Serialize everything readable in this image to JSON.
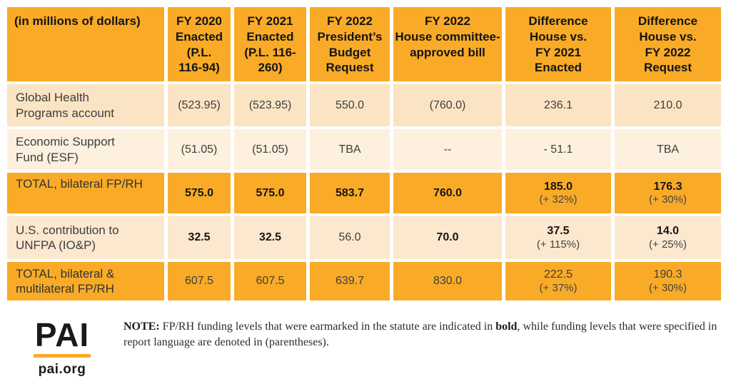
{
  "colors": {
    "orange": "#f9ab27",
    "peach_row1": "#fae4c4",
    "peach_row2": "#fdf0de",
    "peach_row4": "#fbe8cf",
    "text_dark": "#3e3e3e",
    "text_black": "#141414"
  },
  "table": {
    "columns": [
      {
        "lines": [
          "(in millions of dollars)"
        ]
      },
      {
        "lines": [
          "FY 2020",
          "Enacted",
          "(P.L.",
          "116-94)"
        ]
      },
      {
        "lines": [
          "FY 2021",
          "Enacted",
          "(P.L. 116-",
          "260)"
        ]
      },
      {
        "lines": [
          "FY 2022",
          "President’s",
          "Budget",
          "Request"
        ]
      },
      {
        "lines": [
          "FY 2022",
          "House committee-",
          "approved bill"
        ]
      },
      {
        "lines": [
          "Difference",
          "House vs.",
          "FY 2021",
          "Enacted"
        ]
      },
      {
        "lines": [
          "Difference",
          "House vs.",
          "FY 2022",
          "Request"
        ]
      }
    ],
    "rows": [
      {
        "label_lines": [
          "Global Health",
          "Programs account"
        ],
        "cells": [
          {
            "v": "(523.95)"
          },
          {
            "v": "(523.95)"
          },
          {
            "v": "550.0"
          },
          {
            "v": "(760.0)"
          },
          {
            "v": "236.1"
          },
          {
            "v": "210.0"
          }
        ]
      },
      {
        "label_lines": [
          "Economic Support",
          "Fund (ESF)"
        ],
        "cells": [
          {
            "v": "(51.05)"
          },
          {
            "v": "(51.05)"
          },
          {
            "v": "TBA"
          },
          {
            "v": "--"
          },
          {
            "v": "- 51.1"
          },
          {
            "v": "TBA"
          }
        ]
      },
      {
        "label_lines": [
          "TOTAL, bilateral FP/RH"
        ],
        "cells": [
          {
            "v": "575.0"
          },
          {
            "v": "575.0"
          },
          {
            "v": "583.7"
          },
          {
            "v": "760.0"
          },
          {
            "v": "185.0",
            "sub": "(+ 32%)"
          },
          {
            "v": "176.3",
            "sub": "(+ 30%)"
          }
        ]
      },
      {
        "label_lines": [
          "U.S. contribution to",
          "UNFPA (IO&P)"
        ],
        "cells": [
          {
            "v": "32.5"
          },
          {
            "v": "32.5"
          },
          {
            "v": "56.0"
          },
          {
            "v": "70.0"
          },
          {
            "v": "37.5",
            "sub": "(+ 115%)"
          },
          {
            "v": "14.0",
            "sub": "(+ 25%)"
          }
        ]
      },
      {
        "label_lines": [
          "TOTAL, bilateral &",
          "multilateral FP/RH"
        ],
        "cells": [
          {
            "v": "607.5"
          },
          {
            "v": "607.5"
          },
          {
            "v": "639.7"
          },
          {
            "v": "830.0"
          },
          {
            "v": "222.5",
            "sub": "(+ 37%)"
          },
          {
            "v": "190.3",
            "sub": "(+ 30%)"
          }
        ]
      }
    ]
  },
  "footer": {
    "logo_text": "PAI",
    "logo_domain": "pai.org",
    "note_prefix": "NOTE:",
    "note_seg1": " FP/RH funding levels that were earmarked in the statute are indicated in ",
    "note_bold_word": "bold",
    "note_seg2": ", while funding levels that were specified in report language are denoted in (parentheses)."
  },
  "chart_data": {
    "type": "table",
    "title": "FP/RH funding levels (in millions of dollars)",
    "columns": [
      "(in millions of dollars)",
      "FY 2020 Enacted (P.L. 116-94)",
      "FY 2021 Enacted (P.L. 116-260)",
      "FY 2022 President’s Budget Request",
      "FY 2022 House committee-approved bill",
      "Difference House vs. FY 2021 Enacted",
      "Difference House vs. FY 2022 Request"
    ],
    "rows": [
      [
        "Global Health Programs account",
        "(523.95)",
        "(523.95)",
        "550.0",
        "(760.0)",
        "236.1",
        "210.0"
      ],
      [
        "Economic Support Fund (ESF)",
        "(51.05)",
        "(51.05)",
        "TBA",
        "--",
        "- 51.1",
        "TBA"
      ],
      [
        "TOTAL, bilateral FP/RH",
        "575.0",
        "575.0",
        "583.7",
        "760.0",
        "185.0 (+ 32%)",
        "176.3 (+ 30%)"
      ],
      [
        "U.S. contribution to UNFPA (IO&P)",
        "32.5",
        "32.5",
        "56.0",
        "70.0",
        "37.5 (+ 115%)",
        "14.0 (+ 25%)"
      ],
      [
        "TOTAL, bilateral & multilateral FP/RH",
        "607.5",
        "607.5",
        "639.7",
        "830.0",
        "222.5 (+ 37%)",
        "190.3 (+ 30%)"
      ]
    ],
    "note": "NOTE: FP/RH funding levels that were earmarked in the statute are indicated in bold, while funding levels that were specified in report language are denoted in (parentheses).",
    "source_logo": "PAI pai.org"
  }
}
